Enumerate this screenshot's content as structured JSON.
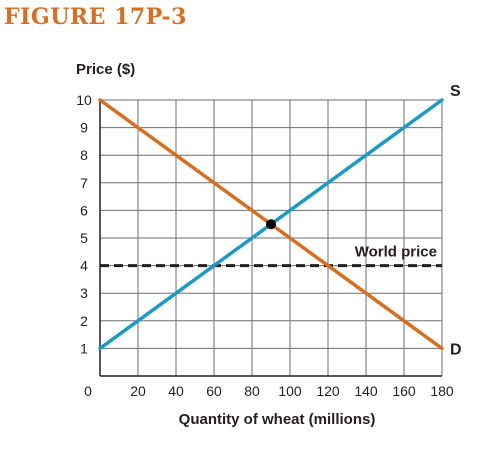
{
  "figure_title": "FIGURE 17P-3",
  "chart_data": {
    "type": "line",
    "ylabel": "Price ($)",
    "xlabel": "Quantity of wheat (millions)",
    "xlim": [
      0,
      180
    ],
    "ylim": [
      0,
      10
    ],
    "x_ticks": [
      0,
      20,
      40,
      60,
      80,
      100,
      120,
      140,
      160,
      180
    ],
    "y_ticks": [
      1,
      2,
      3,
      4,
      5,
      6,
      7,
      8,
      9,
      10
    ],
    "grid": true,
    "series": [
      {
        "name": "S",
        "color": "#1a9bc7",
        "x": [
          0,
          180
        ],
        "y": [
          1,
          10
        ]
      },
      {
        "name": "D",
        "color": "#d96e1f",
        "x": [
          0,
          180
        ],
        "y": [
          10,
          1
        ]
      }
    ],
    "reference_line": {
      "name": "World price",
      "y": 4,
      "style": "dashed",
      "color": "#231f20"
    },
    "equilibrium_point": {
      "x": 90,
      "y": 5.5
    }
  }
}
